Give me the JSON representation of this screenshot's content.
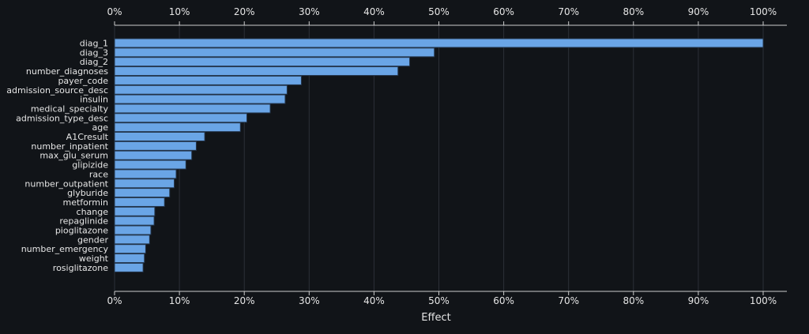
{
  "chart_data": {
    "type": "bar",
    "orientation": "horizontal",
    "title": "",
    "xlabel": "Effect",
    "ylabel": "",
    "xlim": [
      0,
      100
    ],
    "x_tick_values": [
      0,
      10,
      20,
      30,
      40,
      50,
      60,
      70,
      80,
      90,
      100
    ],
    "x_tick_labels": [
      "0%",
      "10%",
      "20%",
      "30%",
      "40%",
      "50%",
      "60%",
      "70%",
      "80%",
      "90%",
      "100%"
    ],
    "grid": "vertical",
    "ticks_on_top_and_bottom": true,
    "categories": [
      "diag_1",
      "diag_3",
      "diag_2",
      "number_diagnoses",
      "payer_code",
      "admission_source_desc",
      "insulin",
      "medical_specialty",
      "admission_type_desc",
      "age",
      "A1Cresult",
      "number_inpatient",
      "max_glu_serum",
      "glipizide",
      "race",
      "number_outpatient",
      "glyburide",
      "metformin",
      "change",
      "repaglinide",
      "pioglitazone",
      "gender",
      "number_emergency",
      "weight",
      "rosiglitazone"
    ],
    "values": [
      100,
      49.3,
      45.5,
      43.7,
      28.8,
      26.6,
      26.3,
      24.0,
      20.4,
      19.4,
      13.9,
      12.6,
      11.9,
      11.0,
      9.5,
      9.2,
      8.5,
      7.7,
      6.2,
      6.1,
      5.6,
      5.4,
      4.8,
      4.6,
      4.4
    ]
  },
  "colors": {
    "background": "#111418",
    "bar_fill": "#6aa5e6",
    "bar_edge": "#24364d",
    "grid": "#2c3038",
    "axis": "#cccccc",
    "text": "#e6e6e6"
  }
}
